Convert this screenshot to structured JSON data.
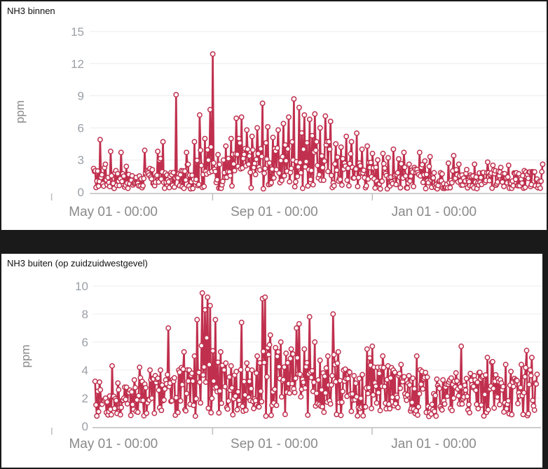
{
  "charts": [
    {
      "title": "NH3 binnen",
      "chart_data": {
        "type": "line",
        "title": "NH3 binnen",
        "ylabel": "ppm",
        "xlabel": "",
        "ylim": [
          0,
          15
        ],
        "yticks": [
          0,
          3,
          6,
          9,
          12,
          15
        ],
        "xticks": [
          "May 01 - 00:00",
          "Sep 01 - 00:00",
          "Jan 01 - 00:00"
        ],
        "xtick_days": [
          0,
          123,
          245
        ],
        "xlim_days": [
          -18,
          331
        ],
        "series_color": "#c0304e",
        "peaks": [
          [
            -15,
            2.2
          ],
          [
            -10,
            4.9
          ],
          [
            -6,
            2.6
          ],
          [
            -2,
            3.8
          ],
          [
            2,
            2.0
          ],
          [
            6,
            3.7
          ],
          [
            10,
            2.4
          ],
          [
            20,
            1.5
          ],
          [
            24,
            3.9
          ],
          [
            28,
            2.2
          ],
          [
            34,
            3.8
          ],
          [
            38,
            4.7
          ],
          [
            44,
            1.8
          ],
          [
            48,
            9.1
          ],
          [
            52,
            2.0
          ],
          [
            56,
            3.7
          ],
          [
            62,
            4.7
          ],
          [
            66,
            7.2
          ],
          [
            70,
            5.0
          ],
          [
            74,
            7.7
          ],
          [
            76,
            12.9
          ],
          [
            80,
            3.5
          ],
          [
            86,
            4.3
          ],
          [
            90,
            5.0
          ],
          [
            94,
            6.9
          ],
          [
            98,
            7.0
          ],
          [
            102,
            5.8
          ],
          [
            106,
            5.2
          ],
          [
            110,
            6.0
          ],
          [
            114,
            8.3
          ],
          [
            118,
            6.1
          ],
          [
            122,
            5.1
          ],
          [
            126,
            5.8
          ],
          [
            130,
            6.4
          ],
          [
            134,
            7.0
          ],
          [
            138,
            8.7
          ],
          [
            142,
            7.9
          ],
          [
            146,
            7.2
          ],
          [
            150,
            6.8
          ],
          [
            154,
            7.3
          ],
          [
            158,
            6.0
          ],
          [
            162,
            7.1
          ],
          [
            166,
            6.6
          ],
          [
            170,
            4.5
          ],
          [
            174,
            4.2
          ],
          [
            178,
            5.2
          ],
          [
            182,
            4.7
          ],
          [
            186,
            5.5
          ],
          [
            190,
            4.0
          ],
          [
            194,
            4.3
          ],
          [
            198,
            3.6
          ],
          [
            202,
            3.0
          ],
          [
            206,
            3.6
          ],
          [
            210,
            3.2
          ],
          [
            214,
            4.0
          ],
          [
            218,
            3.1
          ],
          [
            222,
            3.7
          ],
          [
            226,
            2.6
          ],
          [
            230,
            2.3
          ],
          [
            234,
            3.7
          ],
          [
            238,
            2.9
          ],
          [
            242,
            3.3
          ],
          [
            250,
            1.8
          ],
          [
            256,
            2.7
          ],
          [
            260,
            3.4
          ],
          [
            264,
            2.6
          ],
          [
            270,
            2.1
          ],
          [
            276,
            2.6
          ],
          [
            282,
            1.8
          ],
          [
            286,
            2.8
          ],
          [
            290,
            2.5
          ],
          [
            296,
            2.3
          ],
          [
            302,
            2.5
          ],
          [
            308,
            1.8
          ],
          [
            314,
            2.0
          ],
          [
            320,
            1.9
          ],
          [
            328,
            2.6
          ]
        ]
      }
    },
    {
      "title": "NH3 buiten (op zuidzuidwestgevel)",
      "chart_data": {
        "type": "line",
        "title": "NH3 buiten (op zuidzuidwestgevel)",
        "ylabel": "ppm",
        "xlabel": "",
        "ylim": [
          0,
          10
        ],
        "yticks": [
          0,
          2,
          4,
          6,
          8,
          10
        ],
        "xticks": [
          "May 01 - 00:00",
          "Sep 01 - 00:00",
          "Jan 01 - 00:00"
        ],
        "xtick_days": [
          0,
          123,
          245
        ],
        "xlim_days": [
          -16,
          327
        ],
        "series_color": "#c0304e",
        "peaks": [
          [
            -14,
            3.2
          ],
          [
            -10,
            2.6
          ],
          [
            -6,
            2.0
          ],
          [
            -1,
            4.3
          ],
          [
            4,
            2.6
          ],
          [
            8,
            2.0
          ],
          [
            12,
            2.4
          ],
          [
            16,
            3.3
          ],
          [
            20,
            4.2
          ],
          [
            24,
            3.0
          ],
          [
            28,
            4.0
          ],
          [
            32,
            3.6
          ],
          [
            36,
            4.0
          ],
          [
            40,
            3.3
          ],
          [
            42,
            7.0
          ],
          [
            46,
            3.2
          ],
          [
            50,
            4.0
          ],
          [
            54,
            5.3
          ],
          [
            58,
            4.0
          ],
          [
            62,
            5.0
          ],
          [
            64,
            7.6
          ],
          [
            68,
            9.5
          ],
          [
            70,
            8.3
          ],
          [
            72,
            9.2
          ],
          [
            74,
            8.6
          ],
          [
            78,
            7.6
          ],
          [
            82,
            5.3
          ],
          [
            86,
            4.5
          ],
          [
            90,
            4.3
          ],
          [
            94,
            3.9
          ],
          [
            98,
            7.4
          ],
          [
            102,
            4.5
          ],
          [
            106,
            4.0
          ],
          [
            110,
            5.0
          ],
          [
            114,
            9.1
          ],
          [
            116,
            9.2
          ],
          [
            120,
            6.5
          ],
          [
            124,
            5.6
          ],
          [
            128,
            6.0
          ],
          [
            132,
            5.2
          ],
          [
            136,
            5.5
          ],
          [
            140,
            7.0
          ],
          [
            142,
            7.3
          ],
          [
            146,
            5.5
          ],
          [
            150,
            7.8
          ],
          [
            154,
            6.0
          ],
          [
            158,
            4.7
          ],
          [
            164,
            5.0
          ],
          [
            168,
            8.0
          ],
          [
            172,
            5.3
          ],
          [
            176,
            4.0
          ],
          [
            180,
            3.9
          ],
          [
            184,
            3.6
          ],
          [
            188,
            3.4
          ],
          [
            194,
            5.5
          ],
          [
            198,
            5.7
          ],
          [
            202,
            4.2
          ],
          [
            206,
            5.0
          ],
          [
            210,
            4.3
          ],
          [
            214,
            4.0
          ],
          [
            220,
            4.4
          ],
          [
            226,
            3.6
          ],
          [
            232,
            5.0
          ],
          [
            236,
            3.9
          ],
          [
            240,
            3.5
          ],
          [
            248,
            2.9
          ],
          [
            252,
            3.3
          ],
          [
            256,
            3.0
          ],
          [
            262,
            3.8
          ],
          [
            266,
            5.7
          ],
          [
            270,
            3.4
          ],
          [
            276,
            3.6
          ],
          [
            282,
            3.5
          ],
          [
            286,
            4.9
          ],
          [
            290,
            4.6
          ],
          [
            296,
            3.3
          ],
          [
            300,
            4.4
          ],
          [
            304,
            3.9
          ],
          [
            308,
            3.3
          ],
          [
            312,
            4.4
          ],
          [
            316,
            5.4
          ],
          [
            320,
            4.9
          ],
          [
            324,
            3.7
          ]
        ]
      }
    }
  ]
}
